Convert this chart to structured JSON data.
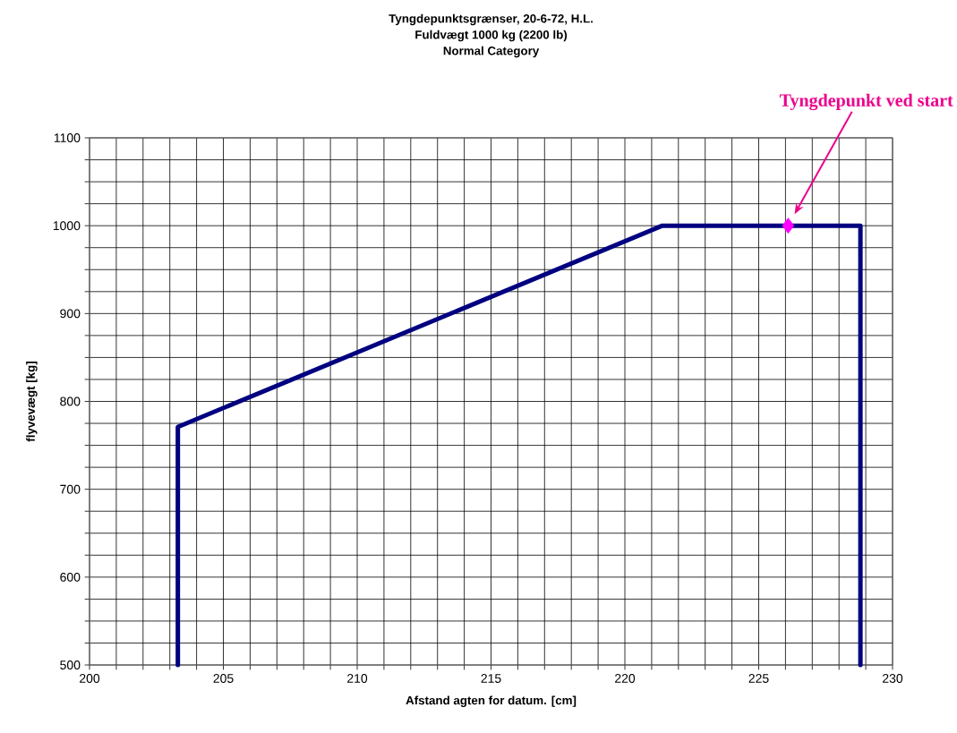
{
  "chart_data": {
    "type": "line",
    "title": "Tyngdepunktsgrænser, 20-6-72, H.L.",
    "subtitle": "Fuldvægt 1000 kg (2200 lb)",
    "xlabel": "Afstand agten for datum. [cm]",
    "ylabel": "flyvevægt [kg]",
    "xlim": [
      200,
      230
    ],
    "ylim": [
      500,
      1100
    ],
    "xticks": [
      200,
      {
        "value": 201,
        "label": null
      },
      {
        "value": 202,
        "label": null
      },
      {
        "value": 203,
        "label": null
      },
      {
        "value": 204,
        "label": null
      },
      205,
      {
        "value": 206,
        "label": null
      },
      {
        "value": 207,
        "label": null
      },
      {
        "value": 208,
        "label": null
      },
      {
        "value": 209,
        "label": null
      },
      210,
      {
        "value": 211,
        "label": null
      },
      {
        "value": 212,
        "label": null
      },
      {
        "value": 213,
        "label": null
      },
      {
        "value": 214,
        "label": null
      },
      215,
      {
        "value": 216,
        "label": null
      },
      {
        "value": 217,
        "label": null
      },
      {
        "value": 218,
        "label": null
      },
      {
        "value": 219,
        "label": null
      },
      220,
      {
        "value": 221,
        "label": null
      },
      {
        "value": 222,
        "label": null
      },
      {
        "value": 223,
        "label": null
      },
      {
        "value": 224,
        "label": null
      },
      225,
      {
        "value": 226,
        "label": null
      },
      {
        "value": 227,
        "label": null
      },
      {
        "value": 228,
        "label": null
      },
      {
        "value": 229,
        "label": null
      },
      230
    ],
    "yticks": [
      500,
      {
        "value": 525,
        "label": null
      },
      {
        "value": 550,
        "label": null
      },
      {
        "value": 575,
        "label": null
      },
      600,
      {
        "value": 625,
        "label": null
      },
      {
        "value": 650,
        "label": null
      },
      {
        "value": 675,
        "label": null
      },
      700,
      {
        "value": 725,
        "label": null
      },
      {
        "value": 750,
        "label": null
      },
      {
        "value": 775,
        "label": null
      },
      800,
      {
        "value": 825,
        "label": null
      },
      {
        "value": 850,
        "label": null
      },
      {
        "value": 875,
        "label": null
      },
      900,
      {
        "value": 925,
        "label": null
      },
      {
        "value": 950,
        "label": null
      },
      {
        "value": 975,
        "label": null
      },
      1000,
      {
        "value": 1025,
        "label": null
      },
      {
        "value": 1050,
        "label": null
      },
      {
        "value": 1075,
        "label": null
      },
      1100
    ],
    "grid": true,
    "series": [
      {
        "color": "#000080",
        "marker": "none",
        "line_style": "solid",
        "x": [
          203.3,
          203.3,
          221.4,
          228.8,
          228.8
        ],
        "values": [
          500,
          771,
          1000,
          1000,
          500
        ]
      },
      {
        "type": "scatter",
        "color": "#ff00ff",
        "marker": "diamond",
        "x": [
          226.1
        ],
        "values": [
          1000
        ]
      }
    ],
    "annotations": [
      "Normal Category",
      "Tyngdepunkt ved start"
    ]
  }
}
